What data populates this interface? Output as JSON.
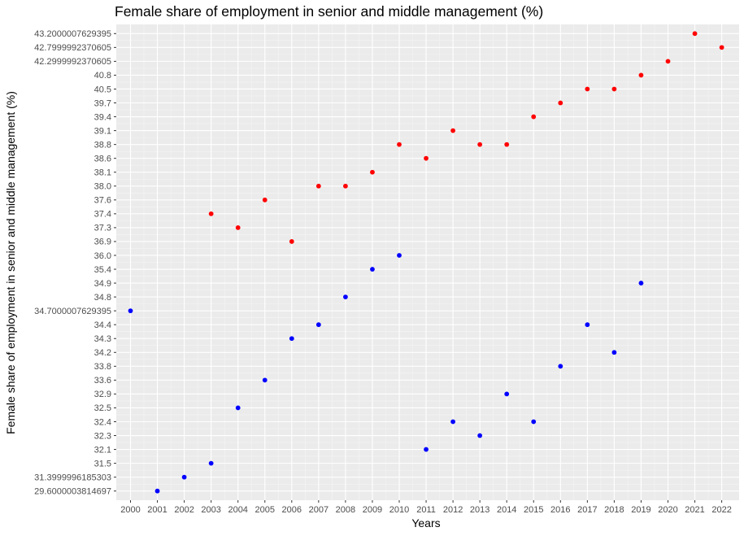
{
  "chart_data": {
    "type": "scatter",
    "title": "Female share of employment in senior and middle management (%)",
    "xlabel": "Years",
    "ylabel": "Female share of employment in senior and middle management (%)",
    "x_ticks": [
      "2000",
      "2001",
      "2002",
      "2003",
      "2004",
      "2005",
      "2006",
      "2007",
      "2008",
      "2009",
      "2010",
      "2011",
      "2012",
      "2013",
      "2014",
      "2015",
      "2016",
      "2017",
      "2018",
      "2019",
      "2020",
      "2021",
      "2022"
    ],
    "y_ticks": [
      "29.6000003814697",
      "31.3999996185303",
      "31.5",
      "32.1",
      "32.3",
      "32.4",
      "32.5",
      "32.9",
      "33.6",
      "33.8",
      "34.2",
      "34.3",
      "34.4",
      "34.7000007629395",
      "34.8",
      "34.9",
      "35.4",
      "36.0",
      "36.9",
      "37.3",
      "37.4",
      "37.6",
      "38.0",
      "38.1",
      "38.6",
      "38.8",
      "39.1",
      "39.4",
      "39.7",
      "40.5",
      "40.8",
      "42.2999992370605",
      "42.7999992370605",
      "43.2000007629395"
    ],
    "y_scale": "categorical (each distinct value is its own evenly spaced level)",
    "grid": true,
    "background": "#ebebeb",
    "series": [
      {
        "color": "#ff0000",
        "points": [
          {
            "x": "2003",
            "y": "37.4"
          },
          {
            "x": "2004",
            "y": "37.3"
          },
          {
            "x": "2005",
            "y": "37.6"
          },
          {
            "x": "2006",
            "y": "36.9"
          },
          {
            "x": "2007",
            "y": "38.0"
          },
          {
            "x": "2008",
            "y": "38.0"
          },
          {
            "x": "2009",
            "y": "38.1"
          },
          {
            "x": "2010",
            "y": "38.8"
          },
          {
            "x": "2011",
            "y": "38.6"
          },
          {
            "x": "2012",
            "y": "39.1"
          },
          {
            "x": "2013",
            "y": "38.8"
          },
          {
            "x": "2014",
            "y": "38.8"
          },
          {
            "x": "2015",
            "y": "39.4"
          },
          {
            "x": "2016",
            "y": "39.7"
          },
          {
            "x": "2017",
            "y": "40.5"
          },
          {
            "x": "2018",
            "y": "40.5"
          },
          {
            "x": "2019",
            "y": "40.8"
          },
          {
            "x": "2020",
            "y": "42.2999992370605"
          },
          {
            "x": "2021",
            "y": "43.2000007629395"
          },
          {
            "x": "2022",
            "y": "42.7999992370605"
          }
        ]
      },
      {
        "color": "#0000ff",
        "points": [
          {
            "x": "2000",
            "y": "34.7000007629395"
          },
          {
            "x": "2001",
            "y": "29.6000003814697"
          },
          {
            "x": "2002",
            "y": "31.3999996185303"
          },
          {
            "x": "2003",
            "y": "31.5"
          },
          {
            "x": "2004",
            "y": "32.5"
          },
          {
            "x": "2005",
            "y": "33.6"
          },
          {
            "x": "2006",
            "y": "34.3"
          },
          {
            "x": "2007",
            "y": "34.4"
          },
          {
            "x": "2008",
            "y": "34.8"
          },
          {
            "x": "2009",
            "y": "35.4"
          },
          {
            "x": "2010",
            "y": "36.0"
          },
          {
            "x": "2011",
            "y": "32.1"
          },
          {
            "x": "2012",
            "y": "32.4"
          },
          {
            "x": "2013",
            "y": "32.3"
          },
          {
            "x": "2014",
            "y": "32.9"
          },
          {
            "x": "2015",
            "y": "32.4"
          },
          {
            "x": "2016",
            "y": "33.8"
          },
          {
            "x": "2017",
            "y": "34.4"
          },
          {
            "x": "2018",
            "y": "34.2"
          },
          {
            "x": "2019",
            "y": "34.9"
          }
        ]
      }
    ]
  }
}
